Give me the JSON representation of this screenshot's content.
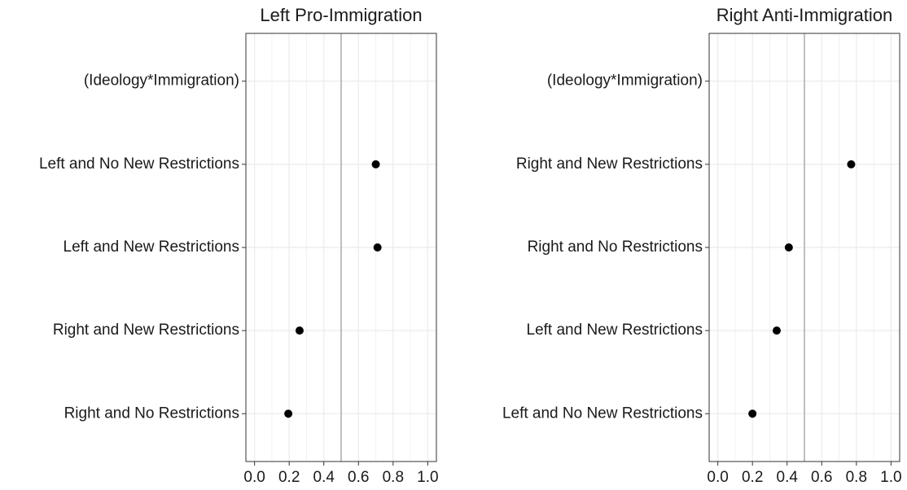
{
  "chart_data": [
    {
      "type": "dot",
      "title": "Left Pro-Immigration",
      "categories": [
        "(Ideology*Immigration)",
        "Left and No New Restrictions",
        "Left and New Restrictions",
        "Right and New Restrictions",
        "Right and No Restrictions"
      ],
      "values": [
        null,
        0.7,
        0.71,
        0.26,
        0.195
      ],
      "color": "#000000",
      "xlim": [
        -0.05,
        1.05
      ],
      "xticks": [
        {
          "value": 0,
          "label": "0.0"
        },
        0.2,
        0.4,
        0.6,
        0.8,
        {
          "value": 1,
          "label": "1.0"
        }
      ],
      "reference_line": 0.5,
      "grid": true
    },
    {
      "type": "dot",
      "title": "Right Anti-Immigration",
      "categories": [
        "(Ideology*Immigration)",
        "Right and New Restrictions",
        "Right and No Restrictions",
        "Left and New Restrictions",
        "Left and No New Restrictions"
      ],
      "values": [
        null,
        0.77,
        0.41,
        0.34,
        0.2
      ],
      "color": "#000000",
      "xlim": [
        -0.05,
        1.05
      ],
      "xticks": [
        {
          "value": 0,
          "label": "0.0"
        },
        0.2,
        0.4,
        0.6,
        0.8,
        {
          "value": 1,
          "label": "1.0"
        }
      ],
      "reference_line": 0.5,
      "grid": true
    }
  ]
}
